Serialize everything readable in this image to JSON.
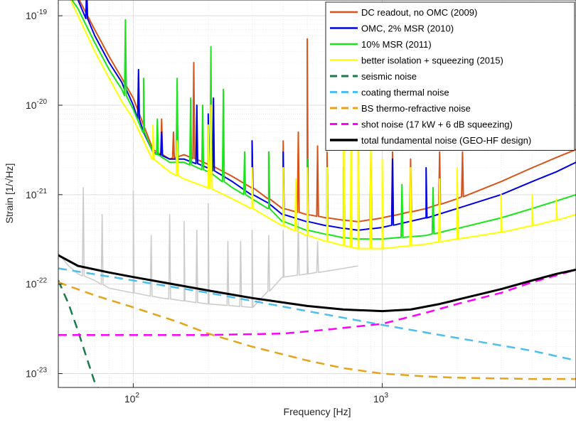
{
  "chart_data": {
    "type": "line",
    "xlabel": "Frequency [Hz]",
    "ylabel": "Strain [1/√Hz]",
    "x_scale": "log",
    "y_scale": "log",
    "xlim": [
      50,
      6000
    ],
    "ylim": [
      7e-24,
      1.5e-19
    ],
    "x_ticks": [
      {
        "value": 100,
        "base": "10",
        "exp": "2"
      },
      {
        "value": 1000,
        "base": "10",
        "exp": "3"
      }
    ],
    "y_ticks": [
      {
        "value": 1e-19,
        "base": "10",
        "exp": "-19"
      },
      {
        "value": 1e-20,
        "base": "10",
        "exp": "-20"
      },
      {
        "value": 1e-21,
        "base": "10",
        "exp": "-21"
      },
      {
        "value": 1e-22,
        "base": "10",
        "exp": "-22"
      },
      {
        "value": 1e-23,
        "base": "10",
        "exp": "-23"
      }
    ],
    "grid": true,
    "legend_position": "top-right",
    "background_trace": {
      "color": "#cccccc",
      "points": [
        [
          50,
          2.2e-22
        ],
        [
          55,
          1.6e-22
        ],
        [
          60,
          1.3e-22
        ],
        [
          70,
          1.1e-22
        ],
        [
          80,
          9e-23
        ],
        [
          100,
          8e-23
        ],
        [
          130,
          7e-23
        ],
        [
          160,
          6.5e-23
        ],
        [
          200,
          6e-23
        ],
        [
          300,
          5.5e-23
        ],
        [
          400,
          1.2e-22
        ],
        [
          500,
          1.3e-22
        ],
        [
          600,
          1.4e-22
        ],
        [
          700,
          1.5e-22
        ],
        [
          800,
          1.6e-22
        ]
      ],
      "spikes": [
        [
          63,
          1.2e-21
        ],
        [
          75,
          6e-22
        ],
        [
          100,
          1.1e-21
        ],
        [
          118,
          3.5e-22
        ],
        [
          140,
          6e-22
        ],
        [
          160,
          5e-22
        ],
        [
          180,
          4e-22
        ],
        [
          200,
          8e-22
        ],
        [
          240,
          3e-22
        ],
        [
          270,
          3e-22
        ],
        [
          300,
          4e-22
        ],
        [
          350,
          3.5e-22
        ],
        [
          400,
          4e-22
        ],
        [
          460,
          5e-22
        ],
        [
          500,
          4e-22
        ],
        [
          550,
          3e-22
        ]
      ]
    },
    "series": [
      {
        "name": "DC readout, no OMC (2009)",
        "color": "#d95319",
        "dash": "solid",
        "width": 2,
        "points": [
          [
            50,
            3e-19
          ],
          [
            60,
            1.6e-19
          ],
          [
            70,
            7e-20
          ],
          [
            80,
            3.5e-20
          ],
          [
            90,
            2e-20
          ],
          [
            100,
            1.2e-20
          ],
          [
            110,
            6e-21
          ],
          [
            120,
            3.2e-21
          ],
          [
            140,
            2.5e-21
          ],
          [
            160,
            2.8e-21
          ],
          [
            200,
            2.2e-21
          ],
          [
            250,
            1.6e-21
          ],
          [
            300,
            1.2e-21
          ],
          [
            350,
            9e-22
          ],
          [
            400,
            7e-22
          ],
          [
            500,
            6e-22
          ],
          [
            600,
            5.5e-22
          ],
          [
            700,
            5.2e-22
          ],
          [
            800,
            5e-22
          ],
          [
            1000,
            5.5e-22
          ],
          [
            1500,
            7e-22
          ],
          [
            2000,
            9e-22
          ],
          [
            3000,
            1.4e-21
          ],
          [
            4000,
            2e-21
          ],
          [
            5000,
            2.6e-21
          ],
          [
            6000,
            3.2e-21
          ]
        ],
        "spikes": [
          [
            130,
            7e-21
          ],
          [
            145,
            5e-21
          ],
          [
            175,
            3e-20
          ],
          [
            200,
            6e-21
          ],
          [
            300,
            4e-21
          ],
          [
            350,
            3e-21
          ],
          [
            400,
            4e-21
          ],
          [
            460,
            5e-21
          ],
          [
            500,
            5.5e-20
          ],
          [
            550,
            3.5e-21
          ],
          [
            600,
            3e-21
          ],
          [
            700,
            3e-21
          ],
          [
            800,
            3.5e-21
          ],
          [
            900,
            3e-21
          ],
          [
            1100,
            3e-21
          ],
          [
            1300,
            2.5e-21
          ],
          [
            1700,
            3e-21
          ],
          [
            2100,
            3e-21
          ]
        ]
      },
      {
        "name": "OMC, 2% MSR (2010)",
        "color": "#0000e6",
        "dash": "solid",
        "width": 2,
        "points": [
          [
            50,
            3e-19
          ],
          [
            60,
            1.5e-19
          ],
          [
            70,
            6e-20
          ],
          [
            80,
            3e-20
          ],
          [
            90,
            1.8e-20
          ],
          [
            100,
            1e-20
          ],
          [
            110,
            5e-21
          ],
          [
            120,
            3e-21
          ],
          [
            140,
            2.5e-21
          ],
          [
            160,
            2.5e-21
          ],
          [
            200,
            2e-21
          ],
          [
            250,
            1.4e-21
          ],
          [
            300,
            1e-21
          ],
          [
            350,
            8e-22
          ],
          [
            400,
            6e-22
          ],
          [
            500,
            5e-22
          ],
          [
            600,
            4.5e-22
          ],
          [
            700,
            4.2e-22
          ],
          [
            800,
            4e-22
          ],
          [
            1000,
            4.3e-22
          ],
          [
            1500,
            5.5e-22
          ],
          [
            2000,
            7e-22
          ],
          [
            3000,
            1e-21
          ],
          [
            4000,
            1.4e-21
          ],
          [
            5000,
            1.8e-21
          ],
          [
            6000,
            2.3e-21
          ]
        ],
        "spikes": [
          [
            65,
            2.3e-19
          ],
          [
            93,
            3.5e-20
          ],
          [
            105,
            2.5e-20
          ],
          [
            130,
            5e-21
          ],
          [
            150,
            9e-21
          ],
          [
            180,
            1e-20
          ],
          [
            200,
            8e-21
          ],
          [
            210,
            1.2e-20
          ],
          [
            300,
            4e-21
          ],
          [
            400,
            3e-21
          ],
          [
            500,
            2.5e-21
          ],
          [
            600,
            2e-21
          ],
          [
            700,
            2e-21
          ],
          [
            900,
            2e-21
          ],
          [
            1100,
            2.5e-21
          ],
          [
            1500,
            2e-21
          ]
        ]
      },
      {
        "name": "10% MSR (2011)",
        "color": "#19e619",
        "dash": "solid",
        "width": 2,
        "points": [
          [
            50,
            2.5e-19
          ],
          [
            60,
            1.2e-19
          ],
          [
            70,
            5e-20
          ],
          [
            80,
            2.5e-20
          ],
          [
            90,
            1.5e-20
          ],
          [
            100,
            9e-21
          ],
          [
            110,
            5e-21
          ],
          [
            120,
            3e-21
          ],
          [
            140,
            2.3e-21
          ],
          [
            160,
            2.3e-21
          ],
          [
            200,
            1.8e-21
          ],
          [
            250,
            1.2e-21
          ],
          [
            300,
            9e-22
          ],
          [
            350,
            7e-22
          ],
          [
            400,
            5e-22
          ],
          [
            500,
            4e-22
          ],
          [
            600,
            3.6e-22
          ],
          [
            700,
            3.3e-22
          ],
          [
            800,
            3.2e-22
          ],
          [
            1000,
            3.2e-22
          ],
          [
            1500,
            3.5e-22
          ],
          [
            2000,
            4.2e-22
          ],
          [
            3000,
            5.5e-22
          ],
          [
            4000,
            7e-22
          ],
          [
            5000,
            8.5e-22
          ],
          [
            6000,
            1e-21
          ]
        ],
        "spikes": [
          [
            93,
            9e-20
          ],
          [
            110,
            2e-20
          ],
          [
            125,
            7e-21
          ],
          [
            150,
            2e-20
          ],
          [
            170,
            1.2e-20
          ],
          [
            190,
            1e-20
          ],
          [
            205,
            4.5e-20
          ],
          [
            230,
            1.5e-20
          ],
          [
            280,
            3e-21
          ],
          [
            350,
            3e-21
          ],
          [
            400,
            2e-21
          ],
          [
            500,
            2.5e-21
          ],
          [
            600,
            2e-21
          ],
          [
            700,
            1.8e-21
          ],
          [
            900,
            1.5e-21
          ],
          [
            1200,
            1.3e-21
          ],
          [
            1600,
            1.2e-21
          ],
          [
            2000,
            1.2e-21
          ]
        ]
      },
      {
        "name": "better isolation + squeezing (2015)",
        "color": "#ffff00",
        "dash": "solid",
        "width": 2,
        "points": [
          [
            50,
            3e-19
          ],
          [
            60,
            1e-19
          ],
          [
            70,
            4e-20
          ],
          [
            80,
            2e-20
          ],
          [
            90,
            1.1e-20
          ],
          [
            100,
            7e-21
          ],
          [
            110,
            4e-21
          ],
          [
            120,
            2.5e-21
          ],
          [
            140,
            1.8e-21
          ],
          [
            160,
            1.5e-21
          ],
          [
            200,
            1.2e-21
          ],
          [
            250,
            9e-22
          ],
          [
            300,
            7e-22
          ],
          [
            350,
            5.5e-22
          ],
          [
            400,
            4.5e-22
          ],
          [
            500,
            3.5e-22
          ],
          [
            600,
            3e-22
          ],
          [
            700,
            2.7e-22
          ],
          [
            800,
            2.5e-22
          ],
          [
            1000,
            2.5e-22
          ],
          [
            1500,
            2.8e-22
          ],
          [
            2000,
            3.2e-22
          ],
          [
            3000,
            3.8e-22
          ],
          [
            4000,
            4.5e-22
          ],
          [
            5000,
            5.2e-22
          ],
          [
            6000,
            6e-22
          ]
        ],
        "spikes": [
          [
            120,
            6e-21
          ],
          [
            150,
            4e-21
          ],
          [
            200,
            6e-21
          ],
          [
            205,
            1e-20
          ],
          [
            300,
            2e-21
          ],
          [
            400,
            2e-21
          ],
          [
            450,
            1.5e-21
          ],
          [
            500,
            2e-21
          ],
          [
            600,
            2e-21
          ],
          [
            700,
            1.4e-20
          ],
          [
            750,
            6e-21
          ],
          [
            800,
            5e-21
          ],
          [
            900,
            4e-21
          ],
          [
            1000,
            2.5e-21
          ],
          [
            1300,
            2e-21
          ],
          [
            1700,
            1.5e-21
          ],
          [
            2000,
            2e-21
          ],
          [
            3000,
            1e-21
          ],
          [
            4000,
            1e-21
          ],
          [
            5000,
            9e-22
          ]
        ]
      },
      {
        "name": "seismic noise",
        "color": "#1a7a4a",
        "dash": "dashed",
        "width": 2.5,
        "points": [
          [
            50,
            1.1e-22
          ],
          [
            55,
            6e-23
          ],
          [
            60,
            3e-23
          ],
          [
            65,
            1.5e-23
          ],
          [
            70,
            8e-24
          ],
          [
            72,
            7e-24
          ]
        ]
      },
      {
        "name": "coating thermal noise",
        "color": "#4dbeee",
        "dash": "dashed",
        "width": 2.5,
        "points": [
          [
            50,
            1.5e-22
          ],
          [
            100,
            1.1e-22
          ],
          [
            200,
            8e-23
          ],
          [
            300,
            6.5e-23
          ],
          [
            500,
            5e-23
          ],
          [
            1000,
            3.5e-23
          ],
          [
            2000,
            2.5e-23
          ],
          [
            4000,
            1.8e-23
          ],
          [
            6000,
            1.4e-23
          ]
        ]
      },
      {
        "name": "BS thermo-refractive noise",
        "color": "#e6a31a",
        "dash": "dashed",
        "width": 2.5,
        "points": [
          [
            50,
            1.05e-22
          ],
          [
            70,
            7.5e-23
          ],
          [
            100,
            5.5e-23
          ],
          [
            150,
            3.8e-23
          ],
          [
            200,
            2.8e-23
          ],
          [
            300,
            2e-23
          ],
          [
            500,
            1.4e-23
          ],
          [
            700,
            1.15e-23
          ],
          [
            1000,
            1e-23
          ],
          [
            1500,
            9.3e-24
          ],
          [
            2000,
            9e-24
          ],
          [
            4000,
            8.7e-24
          ],
          [
            6000,
            8.7e-24
          ]
        ]
      },
      {
        "name": "shot noise (17 kW + 6 dB squeezing)",
        "color": "#ff00ff",
        "dash": "dashed",
        "width": 2.5,
        "points": [
          [
            50,
            2.7e-23
          ],
          [
            200,
            2.7e-23
          ],
          [
            400,
            2.8e-23
          ],
          [
            600,
            3.1e-23
          ],
          [
            1000,
            3.6e-23
          ],
          [
            1500,
            4.8e-23
          ],
          [
            2000,
            6e-23
          ],
          [
            3000,
            8e-23
          ],
          [
            4000,
            1.05e-22
          ],
          [
            6000,
            1.45e-22
          ]
        ]
      },
      {
        "name": "total fundamental noise (GEO-HF design)",
        "color": "#000000",
        "dash": "solid",
        "width": 3,
        "points": [
          [
            50,
            2.1e-22
          ],
          [
            60,
            1.6e-22
          ],
          [
            80,
            1.35e-22
          ],
          [
            100,
            1.2e-22
          ],
          [
            200,
            8.5e-23
          ],
          [
            300,
            7e-23
          ],
          [
            500,
            5.7e-23
          ],
          [
            700,
            5.2e-23
          ],
          [
            1000,
            5e-23
          ],
          [
            1300,
            5.2e-23
          ],
          [
            1700,
            6e-23
          ],
          [
            2000,
            6.7e-23
          ],
          [
            3000,
            8.8e-23
          ],
          [
            4000,
            1.1e-22
          ],
          [
            5000,
            1.3e-22
          ],
          [
            6000,
            1.45e-22
          ]
        ]
      }
    ]
  }
}
